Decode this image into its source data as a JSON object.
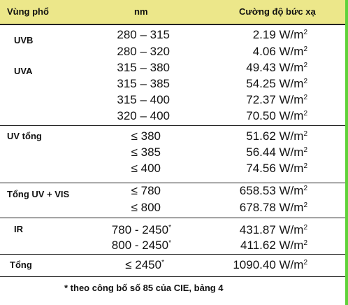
{
  "header": {
    "region": "Vùng phổ",
    "nm": "nm",
    "irradiance": "Cường độ bức xạ"
  },
  "groups": {
    "uvb": "UVB",
    "uva": "UVA",
    "uv_total": "UV tổng",
    "uv_vis": "Tổng UV + VIS",
    "ir": "IR",
    "total": "Tổng"
  },
  "rows": [
    {
      "nm": "280 – 315",
      "value": "2.19 W/m",
      "sup": "2"
    },
    {
      "nm": "280 – 320",
      "value": "4.06 W/m",
      "sup": "2"
    },
    {
      "nm": "315 – 380",
      "value": "49.43 W/m",
      "sup": "2"
    },
    {
      "nm": "315 – 385",
      "value": "54.25 W/m",
      "sup": "2"
    },
    {
      "nm": "315 – 400",
      "value": "72.37 W/m",
      "sup": "2"
    },
    {
      "nm": "320 – 400",
      "value": "70.50 W/m",
      "sup": "2"
    },
    {
      "nm": "≤ 380",
      "value": "51.62 W/m",
      "sup": "2"
    },
    {
      "nm": "≤ 385",
      "value": "56.44 W/m",
      "sup": "2"
    },
    {
      "nm": "≤ 400",
      "value": "74.56 W/m",
      "sup": "2"
    },
    {
      "nm": "≤ 780",
      "value": "658.53 W/m",
      "sup": "2"
    },
    {
      "nm": "≤ 800",
      "value": "678.78 W/m",
      "sup": "2"
    },
    {
      "nm": "780 - 2450",
      "nm_sup": "*",
      "value": "431.87 W/m",
      "sup": "2"
    },
    {
      "nm": "800 - 2450",
      "nm_sup": "*",
      "value": "411.62 W/m",
      "sup": "2"
    },
    {
      "nm": "≤ 2450",
      "nm_sup": "*",
      "value": "1090.40 W/m",
      "sup": "2"
    }
  ],
  "footnote": "* theo công bố số 85 của CIE, bảng 4"
}
